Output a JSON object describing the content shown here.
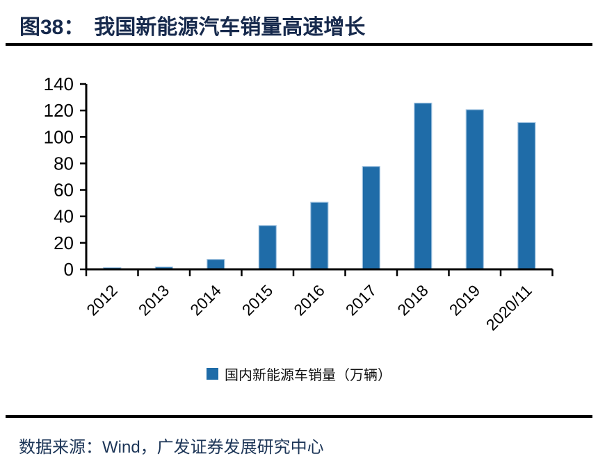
{
  "header": {
    "figure_label": "图38：",
    "title": "我国新能源汽车销量高速增长"
  },
  "chart_data": {
    "type": "bar",
    "title": "",
    "xlabel": "",
    "ylabel": "",
    "categories": [
      "2012",
      "2013",
      "2014",
      "2015",
      "2016",
      "2017",
      "2018",
      "2019",
      "2020/11"
    ],
    "values": [
      1.3,
      1.8,
      7.5,
      33.1,
      50.7,
      77.7,
      125.6,
      120.6,
      110.9
    ],
    "legend": "国内新能源车销量（万辆）",
    "legend_position": "bottom",
    "ylim": [
      0,
      140
    ],
    "ytick_step": 20,
    "grid": false,
    "bar_color": "#1F6CA8",
    "bar_edge_color": "#A3C5E2",
    "axis_color": "#000000",
    "tick_label_color": "#000000"
  },
  "footer": {
    "source_text": "数据来源：Wind，广发证券发展研究中心"
  },
  "colors": {
    "title_navy": "#16294C",
    "source_navy": "#1C3557",
    "rule_black": "#000000",
    "bar_blue": "#1F6CA8"
  }
}
